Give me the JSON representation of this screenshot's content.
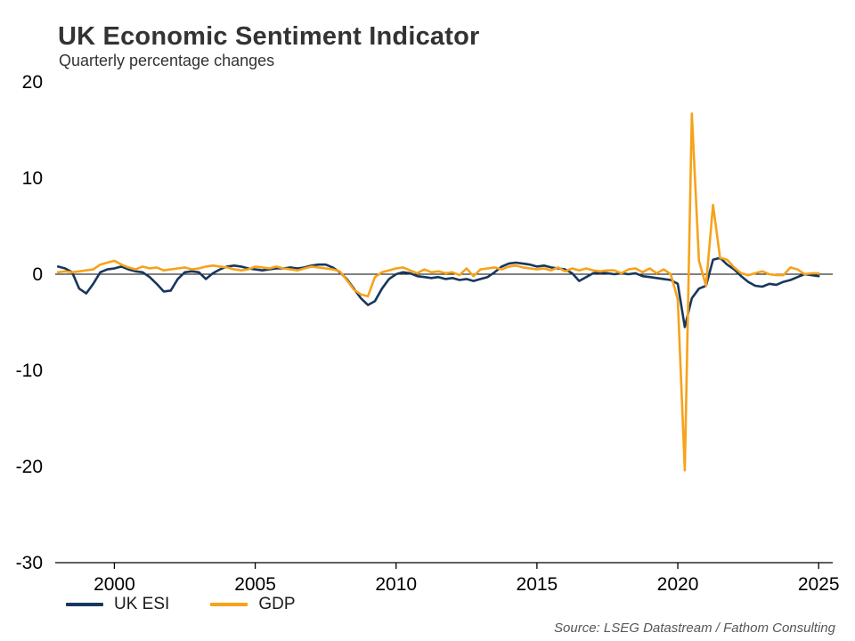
{
  "chart_data": {
    "type": "line",
    "title": "UK Economic Sentiment Indicator",
    "subtitle": "Quarterly percentage changes",
    "source": "Source: LSEG Datastream / Fathom Consulting",
    "xlabel": "",
    "ylabel": "",
    "xlim": [
      1997.9,
      2025.5
    ],
    "ylim": [
      -30,
      20
    ],
    "yticks": [
      20,
      10,
      0,
      -10,
      -20,
      -30
    ],
    "xticks": [
      2000,
      2005,
      2010,
      2015,
      2020,
      2025
    ],
    "grid": false,
    "legend_position": "bottom-left",
    "x": [
      1998,
      1998.25,
      1998.5,
      1998.75,
      1999,
      1999.25,
      1999.5,
      1999.75,
      2000,
      2000.25,
      2000.5,
      2000.75,
      2001,
      2001.25,
      2001.5,
      2001.75,
      2002,
      2002.25,
      2002.5,
      2002.75,
      2003,
      2003.25,
      2003.5,
      2003.75,
      2004,
      2004.25,
      2004.5,
      2004.75,
      2005,
      2005.25,
      2005.5,
      2005.75,
      2006,
      2006.25,
      2006.5,
      2006.75,
      2007,
      2007.25,
      2007.5,
      2007.75,
      2008,
      2008.25,
      2008.5,
      2008.75,
      2009,
      2009.25,
      2009.5,
      2009.75,
      2010,
      2010.25,
      2010.5,
      2010.75,
      2011,
      2011.25,
      2011.5,
      2011.75,
      2012,
      2012.25,
      2012.5,
      2012.75,
      2013,
      2013.25,
      2013.5,
      2013.75,
      2014,
      2014.25,
      2014.5,
      2014.75,
      2015,
      2015.25,
      2015.5,
      2015.75,
      2016,
      2016.25,
      2016.5,
      2016.75,
      2017,
      2017.25,
      2017.5,
      2017.75,
      2018,
      2018.25,
      2018.5,
      2018.75,
      2019,
      2019.25,
      2019.5,
      2019.75,
      2020,
      2020.25,
      2020.5,
      2020.75,
      2021,
      2021.25,
      2021.5,
      2021.75,
      2022,
      2022.25,
      2022.5,
      2022.75,
      2023,
      2023.25,
      2023.5,
      2023.75,
      2024,
      2024.25,
      2024.5,
      2024.75,
      2025
    ],
    "series": [
      {
        "name": "UK ESI",
        "color": "#17375E",
        "values": [
          0.8,
          0.6,
          0.2,
          -1.5,
          -2.0,
          -1.0,
          0.2,
          0.5,
          0.6,
          0.8,
          0.5,
          0.3,
          0.2,
          -0.3,
          -1.0,
          -1.8,
          -1.7,
          -0.5,
          0.2,
          0.3,
          0.2,
          -0.5,
          0.1,
          0.5,
          0.8,
          0.9,
          0.8,
          0.6,
          0.5,
          0.4,
          0.5,
          0.6,
          0.6,
          0.7,
          0.6,
          0.7,
          0.9,
          1.0,
          1.0,
          0.7,
          0.2,
          -0.5,
          -1.5,
          -2.5,
          -3.2,
          -2.8,
          -1.5,
          -0.5,
          0.0,
          0.2,
          0.1,
          -0.2,
          -0.3,
          -0.4,
          -0.3,
          -0.5,
          -0.4,
          -0.6,
          -0.5,
          -0.7,
          -0.5,
          -0.3,
          0.2,
          0.8,
          1.1,
          1.2,
          1.1,
          1.0,
          0.8,
          0.9,
          0.7,
          0.6,
          0.5,
          0.1,
          -0.7,
          -0.3,
          0.1,
          0.2,
          0.1,
          0.0,
          0.1,
          0.0,
          0.1,
          -0.2,
          -0.3,
          -0.4,
          -0.5,
          -0.6,
          -1.0,
          -5.5,
          -2.5,
          -1.5,
          -1.2,
          1.5,
          1.7,
          1.0,
          0.5,
          -0.2,
          -0.8,
          -1.2,
          -1.3,
          -1.0,
          -1.1,
          -0.8,
          -0.6,
          -0.3,
          0.0,
          -0.1,
          -0.2
        ]
      },
      {
        "name": "GDP",
        "color": "#F7A21A",
        "values": [
          0.2,
          0.3,
          0.2,
          0.3,
          0.4,
          0.5,
          1.0,
          1.2,
          1.4,
          1.0,
          0.7,
          0.5,
          0.8,
          0.6,
          0.7,
          0.4,
          0.5,
          0.6,
          0.7,
          0.5,
          0.6,
          0.8,
          0.9,
          0.8,
          0.7,
          0.5,
          0.4,
          0.5,
          0.8,
          0.7,
          0.6,
          0.8,
          0.6,
          0.5,
          0.4,
          0.6,
          0.8,
          0.7,
          0.6,
          0.5,
          0.3,
          -0.6,
          -1.6,
          -2.1,
          -2.3,
          -0.3,
          0.2,
          0.4,
          0.6,
          0.7,
          0.4,
          0.1,
          0.5,
          0.2,
          0.3,
          0.1,
          0.2,
          -0.1,
          0.6,
          -0.2,
          0.5,
          0.6,
          0.7,
          0.5,
          0.8,
          0.9,
          0.7,
          0.6,
          0.5,
          0.6,
          0.4,
          0.7,
          0.3,
          0.6,
          0.4,
          0.6,
          0.4,
          0.3,
          0.4,
          0.4,
          0.1,
          0.5,
          0.6,
          0.2,
          0.6,
          0.1,
          0.5,
          0.0,
          -2.6,
          -20.4,
          16.7,
          1.4,
          -1.2,
          7.2,
          1.7,
          1.5,
          0.7,
          0.1,
          -0.1,
          0.1,
          0.3,
          0.0,
          -0.1,
          -0.1,
          0.7,
          0.5,
          0.0,
          0.1,
          0.1
        ]
      }
    ]
  }
}
